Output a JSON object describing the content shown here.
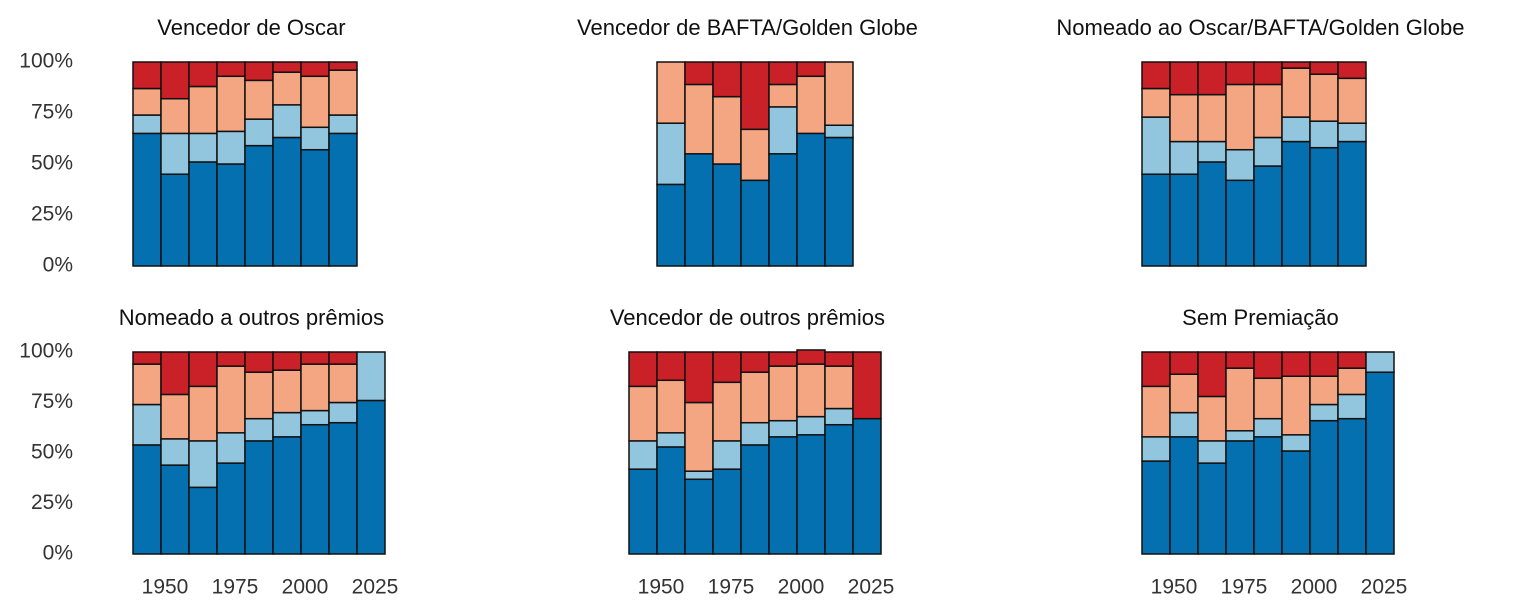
{
  "chart_data": [
    {
      "type": "bar",
      "stacked": true,
      "title": "Vencedor de Oscar",
      "x": [
        1945,
        1955,
        1965,
        1975,
        1985,
        1995,
        2005,
        2015
      ],
      "series": [
        {
          "color": "#0570b0",
          "values": [
            65,
            45,
            51,
            50,
            59,
            63,
            57,
            65
          ]
        },
        {
          "color": "#92c5de",
          "values": [
            9,
            20,
            14,
            16,
            13,
            16,
            11,
            9
          ]
        },
        {
          "color": "#f4a582",
          "values": [
            13,
            17,
            23,
            27,
            19,
            16,
            25,
            22
          ]
        },
        {
          "color": "#ca2027",
          "values": [
            13,
            18,
            12,
            7,
            9,
            5,
            7,
            4
          ]
        }
      ],
      "xlim": [
        1940,
        2030
      ],
      "ylim": [
        0,
        100
      ],
      "yticks": [
        {
          "value": 0,
          "label": "0%"
        },
        {
          "value": 25,
          "label": "25%"
        },
        {
          "value": 50,
          "label": "50%"
        },
        {
          "value": 75,
          "label": "75%"
        },
        {
          "value": 100,
          "label": "100%"
        }
      ]
    },
    {
      "type": "bar",
      "stacked": true,
      "title": "Vencedor de BAFTA/Golden Globe",
      "x": [
        1955,
        1965,
        1975,
        1985,
        1995,
        2005,
        2015
      ],
      "series": [
        {
          "color": "#0570b0",
          "values": [
            40,
            55,
            50,
            42,
            55,
            65,
            63
          ]
        },
        {
          "color": "#92c5de",
          "values": [
            30,
            0,
            0,
            0,
            23,
            0,
            6
          ]
        },
        {
          "color": "#f4a582",
          "values": [
            30,
            34,
            33,
            25,
            11,
            28,
            31
          ]
        },
        {
          "color": "#ca2027",
          "values": [
            0,
            11,
            17,
            33,
            11,
            7,
            0
          ]
        }
      ],
      "xlim": [
        1940,
        2030
      ],
      "ylim": [
        0,
        100
      ]
    },
    {
      "type": "bar",
      "stacked": true,
      "title": "Nomeado ao Oscar/BAFTA/Golden Globe",
      "x": [
        1945,
        1955,
        1965,
        1975,
        1985,
        1995,
        2005,
        2015
      ],
      "series": [
        {
          "color": "#0570b0",
          "values": [
            45,
            45,
            51,
            42,
            49,
            61,
            58,
            61
          ]
        },
        {
          "color": "#92c5de",
          "values": [
            28,
            16,
            10,
            15,
            14,
            12,
            13,
            9
          ]
        },
        {
          "color": "#f4a582",
          "values": [
            14,
            23,
            23,
            32,
            26,
            24,
            23,
            22
          ]
        },
        {
          "color": "#ca2027",
          "values": [
            13,
            16,
            16,
            11,
            11,
            3,
            6,
            8
          ]
        }
      ],
      "xlim": [
        1940,
        2030
      ],
      "ylim": [
        0,
        100
      ]
    },
    {
      "type": "bar",
      "stacked": true,
      "title": "Nomeado a outros prêmios",
      "x": [
        1945,
        1955,
        1965,
        1975,
        1985,
        1995,
        2005,
        2015,
        2025
      ],
      "series": [
        {
          "color": "#0570b0",
          "values": [
            54,
            44,
            33,
            45,
            56,
            58,
            64,
            65,
            76
          ]
        },
        {
          "color": "#92c5de",
          "values": [
            20,
            13,
            23,
            15,
            11,
            12,
            7,
            10,
            24
          ]
        },
        {
          "color": "#f4a582",
          "values": [
            20,
            22,
            27,
            33,
            23,
            21,
            23,
            19,
            0
          ]
        },
        {
          "color": "#ca2027",
          "values": [
            6,
            21,
            17,
            7,
            10,
            9,
            6,
            6,
            0
          ]
        }
      ],
      "xlim": [
        1940,
        2030
      ],
      "ylim": [
        0,
        100
      ],
      "yticks": [
        {
          "value": 0,
          "label": "0%"
        },
        {
          "value": 25,
          "label": "25%"
        },
        {
          "value": 50,
          "label": "50%"
        },
        {
          "value": 75,
          "label": "75%"
        },
        {
          "value": 100,
          "label": "100%"
        }
      ],
      "xticks": [
        1950,
        1975,
        2000,
        2025
      ]
    },
    {
      "type": "bar",
      "stacked": true,
      "title": "Vencedor de outros prêmios",
      "x": [
        1945,
        1955,
        1965,
        1975,
        1985,
        1995,
        2005,
        2015,
        2025
      ],
      "series": [
        {
          "color": "#0570b0",
          "values": [
            42,
            53,
            37,
            42,
            54,
            58,
            59,
            64,
            67
          ]
        },
        {
          "color": "#92c5de",
          "values": [
            14,
            7,
            4,
            14,
            11,
            8,
            9,
            8,
            0
          ]
        },
        {
          "color": "#f4a582",
          "values": [
            27,
            26,
            34,
            29,
            25,
            27,
            26,
            21,
            0
          ]
        },
        {
          "color": "#ca2027",
          "values": [
            17,
            14,
            25,
            15,
            10,
            7,
            7,
            7,
            33
          ]
        }
      ],
      "xlim": [
        1940,
        2030
      ],
      "ylim": [
        0,
        100
      ],
      "xticks": [
        1950,
        1975,
        2000,
        2025
      ]
    },
    {
      "type": "bar",
      "stacked": true,
      "title": "Sem Premiação",
      "x": [
        1945,
        1955,
        1965,
        1975,
        1985,
        1995,
        2005,
        2015,
        2025
      ],
      "series": [
        {
          "color": "#0570b0",
          "values": [
            46,
            58,
            45,
            56,
            58,
            51,
            66,
            67,
            90
          ]
        },
        {
          "color": "#92c5de",
          "values": [
            12,
            12,
            11,
            5,
            9,
            8,
            8,
            12,
            10
          ]
        },
        {
          "color": "#f4a582",
          "values": [
            25,
            19,
            22,
            31,
            20,
            29,
            14,
            13,
            0
          ]
        },
        {
          "color": "#ca2027",
          "values": [
            17,
            11,
            22,
            8,
            13,
            12,
            12,
            8,
            0
          ]
        }
      ],
      "xlim": [
        1940,
        2030
      ],
      "ylim": [
        0,
        100
      ],
      "xticks": [
        1950,
        1975,
        2000,
        2025
      ]
    }
  ]
}
